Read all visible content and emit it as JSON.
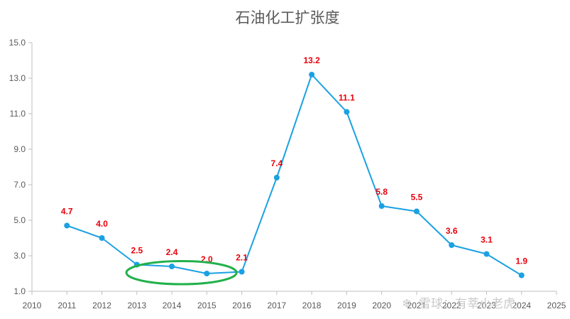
{
  "chart_data": {
    "type": "line",
    "title": "石油化工扩张度",
    "x": [
      "2011",
      "2012",
      "2013",
      "2014",
      "2015",
      "2016",
      "2017",
      "2018",
      "2019",
      "2020",
      "2021",
      "2022",
      "2023",
      "2024"
    ],
    "x_ticks": [
      "2010",
      "2011",
      "2012",
      "2013",
      "2014",
      "2015",
      "2016",
      "2017",
      "2018",
      "2019",
      "2020",
      "2021",
      "2022",
      "2023",
      "2024",
      "2025"
    ],
    "xlim": [
      2010,
      2025
    ],
    "ylim": [
      1.0,
      15.0
    ],
    "y_ticks": [
      "1.0",
      "3.0",
      "5.0",
      "7.0",
      "9.0",
      "11.0",
      "13.0",
      "15.0"
    ],
    "series": [
      {
        "values": [
          4.7,
          4.0,
          2.5,
          2.4,
          2.0,
          2.1,
          7.4,
          13.2,
          11.1,
          5.8,
          5.5,
          3.6,
          3.1,
          1.9
        ],
        "labels": [
          "4.7",
          "4.0",
          "2.5",
          "2.4",
          "2.0",
          "2.1",
          "7.4",
          "13.2",
          "11.1",
          "5.8",
          "5.5",
          "3.6",
          "3.1",
          "1.9"
        ],
        "color": "#1ba1e2"
      }
    ],
    "label_color": "#e8000b",
    "highlight": {
      "shape": "ellipse",
      "color": "#22b14c",
      "x_range": [
        2012.7,
        2015.85
      ],
      "y_range": [
        1.4,
        2.7
      ]
    },
    "grid": false,
    "legend": "none"
  },
  "watermark": "雪球：有莘小老虎"
}
